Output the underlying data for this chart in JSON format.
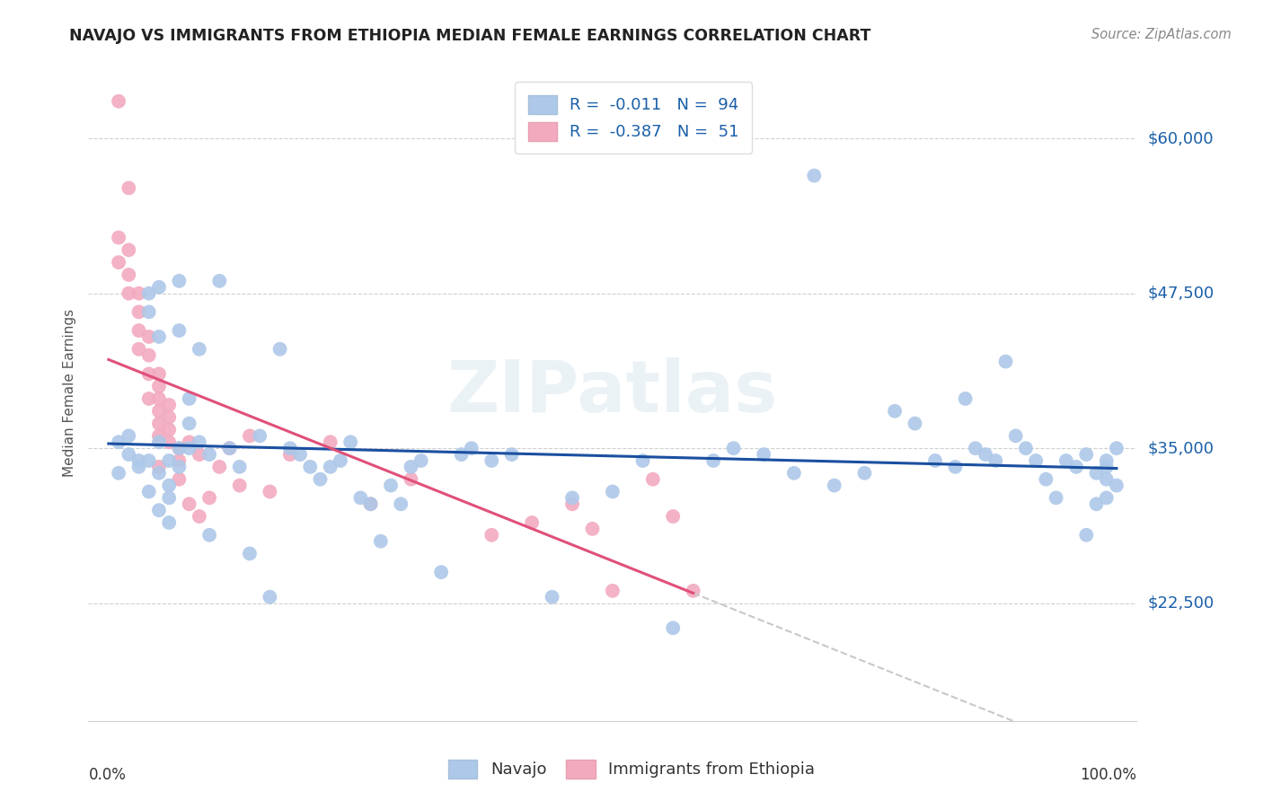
{
  "title": "NAVAJO VS IMMIGRANTS FROM ETHIOPIA MEDIAN FEMALE EARNINGS CORRELATION CHART",
  "source": "Source: ZipAtlas.com",
  "ylabel": "Median Female Earnings",
  "yticks": [
    22500,
    35000,
    47500,
    60000
  ],
  "ytick_labels": [
    "$22,500",
    "$35,000",
    "$47,500",
    "$60,000"
  ],
  "watermark": "ZIPatlas",
  "navajo_R": "-0.011",
  "navajo_N": "94",
  "ethiopia_R": "-0.387",
  "ethiopia_N": "51",
  "background_color": "#ffffff",
  "plot_bg_color": "#ffffff",
  "navajo_color": "#adc8e8",
  "ethiopia_color": "#f2aabf",
  "navajo_line_color": "#1a4fa0",
  "ethiopia_line_color": "#e0507a",
  "dashed_line_color": "#c8c8c8",
  "navajo_scatter_x": [
    1,
    1,
    2,
    2,
    3,
    3,
    4,
    4,
    4,
    4,
    5,
    5,
    5,
    5,
    5,
    6,
    6,
    6,
    6,
    7,
    7,
    7,
    7,
    8,
    8,
    8,
    9,
    9,
    10,
    10,
    11,
    12,
    13,
    14,
    15,
    16,
    17,
    18,
    19,
    20,
    21,
    22,
    23,
    24,
    25,
    26,
    27,
    28,
    29,
    30,
    31,
    33,
    35,
    36,
    38,
    40,
    44,
    46,
    50,
    53,
    56,
    60,
    62,
    65,
    68,
    70,
    72,
    75,
    78,
    80,
    82,
    84,
    85,
    86,
    87,
    88,
    89,
    90,
    91,
    92,
    93,
    94,
    95,
    96,
    97,
    97,
    98,
    98,
    99,
    99,
    99,
    99,
    100,
    100
  ],
  "navajo_scatter_y": [
    35500,
    33000,
    36000,
    34500,
    34000,
    33500,
    47500,
    46000,
    34000,
    31500,
    48000,
    44000,
    35500,
    33000,
    30000,
    34000,
    32000,
    31000,
    29000,
    48500,
    44500,
    35000,
    33500,
    39000,
    37000,
    35000,
    43000,
    35500,
    34500,
    28000,
    48500,
    35000,
    33500,
    26500,
    36000,
    23000,
    43000,
    35000,
    34500,
    33500,
    32500,
    33500,
    34000,
    35500,
    31000,
    30500,
    27500,
    32000,
    30500,
    33500,
    34000,
    25000,
    34500,
    35000,
    34000,
    34500,
    23000,
    31000,
    31500,
    34000,
    20500,
    34000,
    35000,
    34500,
    33000,
    57000,
    32000,
    33000,
    38000,
    37000,
    34000,
    33500,
    39000,
    35000,
    34500,
    34000,
    42000,
    36000,
    35000,
    34000,
    32500,
    31000,
    34000,
    33500,
    28000,
    34500,
    33000,
    30500,
    32500,
    31000,
    34000,
    33500,
    35000,
    32000
  ],
  "ethiopia_scatter_x": [
    1,
    1,
    1,
    2,
    2,
    2,
    2,
    3,
    3,
    3,
    3,
    4,
    4,
    4,
    4,
    5,
    5,
    5,
    5,
    5,
    5,
    5,
    6,
    6,
    6,
    6,
    7,
    7,
    7,
    8,
    8,
    9,
    9,
    10,
    11,
    12,
    13,
    14,
    16,
    18,
    22,
    26,
    30,
    38,
    42,
    46,
    48,
    50,
    54,
    56,
    58
  ],
  "ethiopia_scatter_y": [
    63000,
    52000,
    50000,
    56000,
    51000,
    49000,
    47500,
    47500,
    46000,
    44500,
    43000,
    44000,
    42500,
    41000,
    39000,
    41000,
    40000,
    39000,
    38000,
    37000,
    36000,
    33500,
    38500,
    37500,
    36500,
    35500,
    35000,
    34000,
    32500,
    35500,
    30500,
    34500,
    29500,
    31000,
    33500,
    35000,
    32000,
    36000,
    31500,
    34500,
    35500,
    30500,
    32500,
    28000,
    29000,
    30500,
    28500,
    23500,
    32500,
    29500,
    23500
  ],
  "xlim": [
    -2,
    102
  ],
  "ylim": [
    13000,
    66000
  ]
}
